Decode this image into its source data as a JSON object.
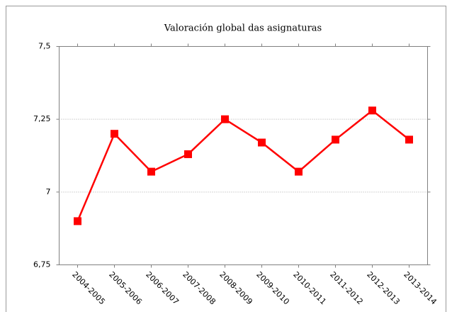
{
  "chart_data": {
    "type": "line",
    "title": "Valoración global das asignaturas",
    "categories": [
      "2004-2005",
      "2005-2006",
      "2006-2007",
      "2007-2008",
      "2008-2009",
      "2009-2010",
      "2010-2011",
      "2011-2012",
      "2012-2013",
      "2013-2014"
    ],
    "values": [
      6.9,
      7.2,
      7.07,
      7.13,
      7.25,
      7.17,
      7.07,
      7.18,
      7.28,
      7.18
    ],
    "color": "#ff0000",
    "ylim": [
      6.75,
      7.5
    ],
    "yticks": [
      {
        "value": 6.75,
        "label": "6,75"
      },
      7,
      {
        "value": 7.25,
        "label": "7,25"
      },
      {
        "value": 7.5,
        "label": "7,5"
      }
    ],
    "grid": true
  }
}
